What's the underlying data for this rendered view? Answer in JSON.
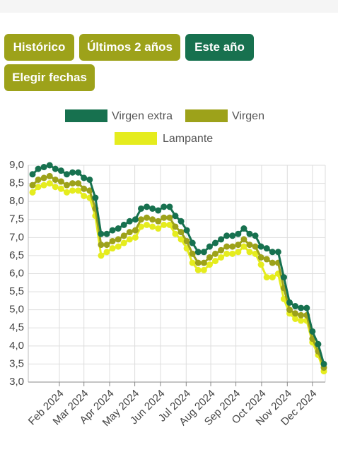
{
  "buttons": [
    "Histórico",
    "Últimos 2 años",
    "Este año",
    "Elegir fechas"
  ],
  "chart_data": {
    "type": "line",
    "categories": [
      null,
      null,
      null,
      null,
      null,
      null,
      null,
      null,
      null,
      null,
      null,
      null,
      null,
      null,
      null,
      null,
      null,
      null,
      null,
      null,
      null,
      null,
      null,
      null,
      null,
      null,
      null,
      null,
      null,
      null,
      null,
      null,
      null,
      null,
      null,
      null,
      null,
      null,
      null,
      null,
      null,
      null,
      null,
      null,
      null,
      null,
      null,
      null,
      null,
      null,
      null,
      null
    ],
    "series": [
      {
        "name": "Virgen extra",
        "color": "#17714f",
        "values": [
          8.75,
          8.9,
          8.95,
          9.0,
          8.9,
          8.85,
          8.75,
          8.8,
          8.8,
          8.65,
          8.6,
          8.1,
          7.1,
          7.1,
          7.2,
          7.25,
          7.35,
          7.45,
          7.5,
          7.8,
          7.85,
          7.8,
          7.75,
          7.85,
          7.85,
          7.6,
          7.45,
          7.2,
          6.85,
          6.6,
          6.6,
          6.75,
          6.85,
          6.95,
          7.05,
          7.05,
          7.1,
          7.25,
          7.1,
          7.05,
          6.75,
          6.7,
          6.6,
          6.6,
          5.9,
          5.2,
          5.1,
          5.05,
          5.05,
          4.4,
          4.05,
          3.5
        ]
      },
      {
        "name": "Virgen",
        "color": "#9da21a",
        "values": [
          8.45,
          8.6,
          8.65,
          8.7,
          8.6,
          8.55,
          8.45,
          8.5,
          8.5,
          8.35,
          8.3,
          7.8,
          6.8,
          6.8,
          6.9,
          6.95,
          7.05,
          7.15,
          7.2,
          7.5,
          7.55,
          7.5,
          7.45,
          7.55,
          7.55,
          7.3,
          7.15,
          6.9,
          6.55,
          6.3,
          6.3,
          6.45,
          6.55,
          6.65,
          6.75,
          6.75,
          6.8,
          6.95,
          6.8,
          6.75,
          6.45,
          6.4,
          6.3,
          6.3,
          5.6,
          5.0,
          4.9,
          4.85,
          4.85,
          4.2,
          3.85,
          3.4
        ]
      },
      {
        "name": "Lampante",
        "color": "#e5ec1e",
        "values": [
          8.25,
          8.4,
          8.45,
          8.5,
          8.4,
          8.35,
          8.25,
          8.3,
          8.3,
          8.15,
          8.1,
          7.6,
          6.5,
          6.6,
          6.7,
          6.75,
          6.85,
          6.95,
          7.0,
          7.3,
          7.35,
          7.3,
          7.25,
          7.35,
          7.35,
          7.1,
          6.95,
          6.7,
          6.3,
          6.1,
          6.1,
          6.25,
          6.35,
          6.45,
          6.55,
          6.55,
          6.6,
          6.75,
          6.6,
          6.55,
          6.25,
          5.9,
          5.9,
          6.0,
          5.3,
          4.9,
          4.75,
          4.7,
          4.7,
          4.1,
          3.75,
          3.3
        ]
      }
    ],
    "xlim": [
      0,
      51
    ],
    "xticks": [
      {
        "value": 4.7,
        "label": "Feb 2024"
      },
      {
        "value": 9.0,
        "label": "Mar 2024"
      },
      {
        "value": 13.5,
        "label": "Apr 2024"
      },
      {
        "value": 17.9,
        "label": "May 2024"
      },
      {
        "value": 22.4,
        "label": "Jun 2024"
      },
      {
        "value": 26.9,
        "label": "Jul 2024"
      },
      {
        "value": 31.2,
        "label": "Aug 2024"
      },
      {
        "value": 35.6,
        "label": "Sep 2024"
      },
      {
        "value": 40.1,
        "label": "Oct 2024"
      },
      {
        "value": 44.6,
        "label": "Nov 2024"
      },
      {
        "value": 49.0,
        "label": "Dec 2024"
      }
    ],
    "ylim": [
      3,
      9
    ],
    "yticks": [
      {
        "value": 3,
        "label": "3,0"
      },
      {
        "value": 3.5,
        "label": "3,5"
      },
      {
        "value": 4,
        "label": "4,0"
      },
      {
        "value": 4.5,
        "label": "4,5"
      },
      {
        "value": 5,
        "label": "5,0"
      },
      {
        "value": 5.5,
        "label": "5,5"
      },
      {
        "value": 6,
        "label": "6,0"
      },
      {
        "value": 6.5,
        "label": "6,5"
      },
      {
        "value": 7,
        "label": "7,0"
      },
      {
        "value": 7.5,
        "label": "7,5"
      },
      {
        "value": 8,
        "label": "8,0"
      },
      {
        "value": 8.5,
        "label": "8,5"
      },
      {
        "value": 9,
        "label": "9,0"
      }
    ],
    "grid": true,
    "legend": "top"
  }
}
